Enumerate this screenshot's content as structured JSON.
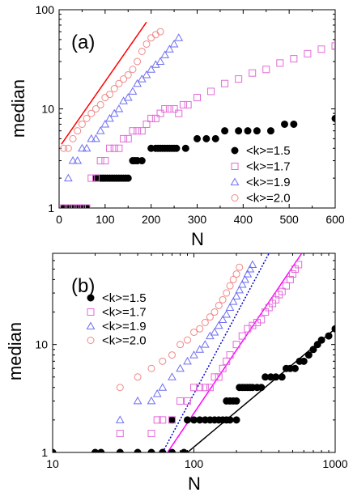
{
  "chart_data": [
    {
      "type": "scatter",
      "panel_label": "(a)",
      "xlabel": "N",
      "ylabel": "median",
      "xscale": "linear",
      "yscale": "log",
      "xlim": [
        0,
        600
      ],
      "ylim": [
        1,
        100
      ],
      "xticks": [
        "0",
        "100",
        "200",
        "300",
        "400",
        "500",
        "600"
      ],
      "yticks": [
        "1",
        "10",
        "100"
      ],
      "legend_position": "lower-right",
      "series": [
        {
          "name": "<k>=1.5",
          "marker": "filled-circle",
          "color": "#000000",
          "points": [
            [
              10,
              1
            ],
            [
              15,
              1
            ],
            [
              20,
              1
            ],
            [
              25,
              1
            ],
            [
              30,
              1
            ],
            [
              35,
              1
            ],
            [
              40,
              1
            ],
            [
              45,
              1
            ],
            [
              50,
              1
            ],
            [
              55,
              1
            ],
            [
              60,
              1
            ],
            [
              80,
              2
            ],
            [
              85,
              2
            ],
            [
              90,
              2
            ],
            [
              95,
              2
            ],
            [
              100,
              2
            ],
            [
              105,
              2
            ],
            [
              110,
              2
            ],
            [
              115,
              2
            ],
            [
              120,
              2
            ],
            [
              125,
              2
            ],
            [
              130,
              2
            ],
            [
              135,
              2
            ],
            [
              140,
              2
            ],
            [
              145,
              2
            ],
            [
              150,
              2
            ],
            [
              160,
              3
            ],
            [
              165,
              3
            ],
            [
              170,
              3
            ],
            [
              180,
              3
            ],
            [
              200,
              4
            ],
            [
              210,
              4
            ],
            [
              215,
              4
            ],
            [
              220,
              4
            ],
            [
              225,
              4
            ],
            [
              230,
              4
            ],
            [
              235,
              4
            ],
            [
              240,
              4
            ],
            [
              245,
              4
            ],
            [
              250,
              4
            ],
            [
              255,
              4
            ],
            [
              275,
              4
            ],
            [
              300,
              5
            ],
            [
              320,
              5
            ],
            [
              340,
              5
            ],
            [
              360,
              6
            ],
            [
              390,
              6
            ],
            [
              410,
              6
            ],
            [
              430,
              6
            ],
            [
              460,
              6
            ],
            [
              490,
              7
            ],
            [
              510,
              7
            ],
            [
              600,
              8
            ]
          ]
        },
        {
          "name": "<k>=1.7",
          "marker": "open-square",
          "color": "#e36ad8",
          "points": [
            [
              10,
              1
            ],
            [
              20,
              1
            ],
            [
              30,
              1
            ],
            [
              40,
              1
            ],
            [
              50,
              1
            ],
            [
              60,
              1
            ],
            [
              70,
              2
            ],
            [
              80,
              2
            ],
            [
              90,
              3
            ],
            [
              100,
              3
            ],
            [
              110,
              4
            ],
            [
              120,
              4
            ],
            [
              130,
              4
            ],
            [
              140,
              5
            ],
            [
              150,
              5
            ],
            [
              160,
              6
            ],
            [
              170,
              6
            ],
            [
              180,
              6
            ],
            [
              190,
              7
            ],
            [
              200,
              8
            ],
            [
              210,
              8
            ],
            [
              220,
              9
            ],
            [
              230,
              10
            ],
            [
              240,
              10
            ],
            [
              250,
              10
            ],
            [
              260,
              9
            ],
            [
              270,
              11
            ],
            [
              280,
              11
            ],
            [
              300,
              13
            ],
            [
              330,
              15
            ],
            [
              360,
              18
            ],
            [
              390,
              20
            ],
            [
              420,
              23
            ],
            [
              450,
              25
            ],
            [
              480,
              29
            ],
            [
              510,
              32
            ],
            [
              540,
              36
            ],
            [
              570,
              40
            ],
            [
              600,
              43
            ]
          ]
        },
        {
          "name": "<k>=1.9",
          "marker": "open-triangle",
          "color": "#6f6ff2",
          "points": [
            [
              20,
              2
            ],
            [
              30,
              3
            ],
            [
              40,
              3
            ],
            [
              50,
              4
            ],
            [
              60,
              4
            ],
            [
              70,
              5
            ],
            [
              80,
              5
            ],
            [
              90,
              6
            ],
            [
              100,
              7
            ],
            [
              110,
              8
            ],
            [
              120,
              9
            ],
            [
              130,
              10
            ],
            [
              140,
              12
            ],
            [
              150,
              13
            ],
            [
              160,
              15
            ],
            [
              170,
              18
            ],
            [
              180,
              20
            ],
            [
              190,
              22
            ],
            [
              200,
              25
            ],
            [
              210,
              28
            ],
            [
              220,
              30
            ],
            [
              230,
              35
            ],
            [
              240,
              40
            ],
            [
              250,
              45
            ],
            [
              260,
              52
            ]
          ]
        },
        {
          "name": "<k>=2.0",
          "marker": "open-circle",
          "color": "#f08888",
          "points": [
            [
              10,
              4
            ],
            [
              20,
              4
            ],
            [
              30,
              5
            ],
            [
              40,
              6
            ],
            [
              50,
              7
            ],
            [
              60,
              8
            ],
            [
              70,
              9
            ],
            [
              80,
              10
            ],
            [
              90,
              11
            ],
            [
              100,
              13
            ],
            [
              110,
              14
            ],
            [
              120,
              16
            ],
            [
              130,
              18
            ],
            [
              140,
              20
            ],
            [
              150,
              22
            ],
            [
              160,
              25
            ],
            [
              170,
              30
            ],
            [
              180,
              38
            ],
            [
              190,
              45
            ],
            [
              200,
              52
            ],
            [
              210,
              56
            ],
            [
              220,
              60
            ]
          ]
        }
      ],
      "lines": [
        {
          "x": [
            5,
            190
          ],
          "y": [
            4.4,
            75
          ],
          "color": "#ff0000"
        }
      ]
    },
    {
      "type": "scatter",
      "panel_label": "(b)",
      "xlabel": "N",
      "ylabel": "median",
      "xscale": "log",
      "yscale": "log",
      "xlim": [
        10,
        1000
      ],
      "ylim": [
        1,
        70
      ],
      "xticks": [
        "10",
        "100",
        "1000"
      ],
      "yticks": [
        "1",
        "10"
      ],
      "legend_position": "upper-left",
      "series": [
        {
          "name": "<k>=1.5",
          "marker": "filled-circle",
          "color": "#000000",
          "points": [
            [
              10,
              1
            ],
            [
              20,
              1
            ],
            [
              22,
              1
            ],
            [
              30,
              1
            ],
            [
              40,
              1
            ],
            [
              50,
              1
            ],
            [
              60,
              1
            ],
            [
              70,
              1
            ],
            [
              85,
              1
            ],
            [
              70,
              2
            ],
            [
              90,
              2
            ],
            [
              100,
              2
            ],
            [
              110,
              2
            ],
            [
              120,
              2
            ],
            [
              130,
              2
            ],
            [
              140,
              2
            ],
            [
              150,
              2
            ],
            [
              160,
              2
            ],
            [
              170,
              2
            ],
            [
              180,
              2
            ],
            [
              200,
              2
            ],
            [
              170,
              3
            ],
            [
              180,
              3
            ],
            [
              190,
              3
            ],
            [
              200,
              3
            ],
            [
              210,
              4
            ],
            [
              220,
              4
            ],
            [
              230,
              4
            ],
            [
              240,
              4
            ],
            [
              250,
              4
            ],
            [
              260,
              4
            ],
            [
              280,
              4
            ],
            [
              300,
              4
            ],
            [
              320,
              5
            ],
            [
              350,
              5
            ],
            [
              380,
              5
            ],
            [
              420,
              5
            ],
            [
              450,
              6
            ],
            [
              480,
              6
            ],
            [
              520,
              6
            ],
            [
              560,
              7
            ],
            [
              600,
              7
            ],
            [
              650,
              8
            ],
            [
              700,
              9
            ],
            [
              750,
              10
            ],
            [
              800,
              11
            ],
            [
              900,
              12
            ],
            [
              1000,
              14
            ]
          ]
        },
        {
          "name": "<k>=1.7",
          "marker": "open-square",
          "color": "#e36ad8",
          "points": [
            [
              30,
              1.5
            ],
            [
              50,
              1.5
            ],
            [
              55,
              2
            ],
            [
              60,
              2
            ],
            [
              70,
              2
            ],
            [
              80,
              3
            ],
            [
              90,
              3
            ],
            [
              100,
              4
            ],
            [
              110,
              4
            ],
            [
              120,
              4
            ],
            [
              130,
              4
            ],
            [
              140,
              5
            ],
            [
              150,
              5
            ],
            [
              160,
              6
            ],
            [
              170,
              7
            ],
            [
              180,
              8
            ],
            [
              200,
              10
            ],
            [
              220,
              12
            ],
            [
              240,
              14
            ],
            [
              260,
              15
            ],
            [
              280,
              16
            ],
            [
              300,
              17
            ],
            [
              320,
              20
            ],
            [
              340,
              22
            ],
            [
              360,
              24
            ],
            [
              380,
              26
            ],
            [
              400,
              29
            ],
            [
              420,
              31
            ],
            [
              450,
              35
            ],
            [
              480,
              40
            ],
            [
              500,
              45
            ],
            [
              520,
              50
            ],
            [
              550,
              55
            ]
          ]
        },
        {
          "name": "<k>=1.9",
          "marker": "open-triangle",
          "color": "#6f6ff2",
          "points": [
            [
              30,
              2
            ],
            [
              40,
              3
            ],
            [
              50,
              3
            ],
            [
              55,
              3.5
            ],
            [
              60,
              4
            ],
            [
              70,
              5
            ],
            [
              80,
              6
            ],
            [
              90,
              7
            ],
            [
              100,
              8
            ],
            [
              110,
              9
            ],
            [
              120,
              10
            ],
            [
              130,
              12
            ],
            [
              140,
              13
            ],
            [
              150,
              15
            ],
            [
              160,
              17
            ],
            [
              170,
              19
            ],
            [
              180,
              22
            ],
            [
              190,
              25
            ],
            [
              200,
              28
            ],
            [
              210,
              32
            ],
            [
              220,
              36
            ],
            [
              230,
              40
            ],
            [
              240,
              45
            ],
            [
              250,
              50
            ],
            [
              260,
              55
            ]
          ]
        },
        {
          "name": "<k>=2.0",
          "marker": "open-circle",
          "color": "#f08888",
          "points": [
            [
              30,
              4
            ],
            [
              40,
              5
            ],
            [
              50,
              6
            ],
            [
              60,
              7
            ],
            [
              70,
              8
            ],
            [
              80,
              10
            ],
            [
              90,
              11
            ],
            [
              100,
              13
            ],
            [
              110,
              14
            ],
            [
              120,
              16
            ],
            [
              130,
              18
            ],
            [
              140,
              20
            ],
            [
              150,
              23
            ],
            [
              160,
              26
            ],
            [
              170,
              30
            ],
            [
              180,
              35
            ],
            [
              190,
              40
            ],
            [
              200,
              45
            ],
            [
              210,
              52
            ]
          ]
        }
      ],
      "lines": [
        {
          "x": [
            60,
            340
          ],
          "y": [
            1,
            70
          ],
          "color": "#0000cc",
          "dash": "dotted"
        },
        {
          "x": [
            65,
            580
          ],
          "y": [
            1,
            70
          ],
          "color": "#ff00ff"
        },
        {
          "x": [
            90,
            1000
          ],
          "y": [
            1,
            14
          ],
          "color": "#000000"
        }
      ]
    }
  ]
}
